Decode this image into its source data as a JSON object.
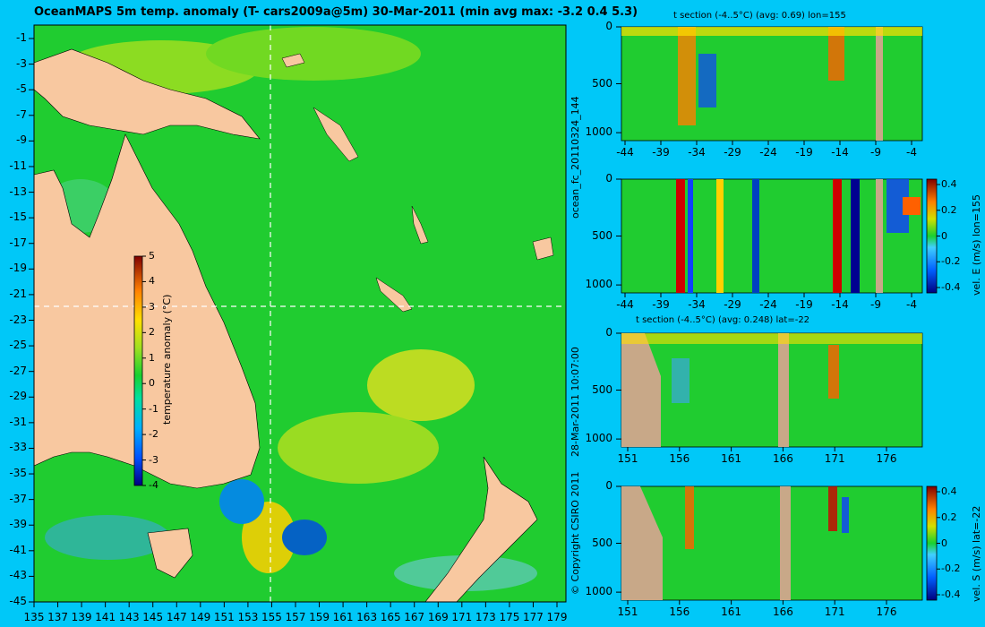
{
  "map": {
    "title": "OceanMAPS 5m temp. anomaly (T- cars2009a@5m) 30-Mar-2011 (min avg max: -3.2 0.4 5.3)",
    "lat_ticks": [
      "-1",
      "-3",
      "-5",
      "-7",
      "-9",
      "-11",
      "-13",
      "-15",
      "-17",
      "-19",
      "-21",
      "-23",
      "-25",
      "-27",
      "-29",
      "-31",
      "-33",
      "-35",
      "-37",
      "-39",
      "-41",
      "-43",
      "-45"
    ],
    "lon_ticks": [
      "135",
      "137",
      "139",
      "141",
      "143",
      "145",
      "147",
      "149",
      "151",
      "153",
      "155",
      "157",
      "159",
      "161",
      "163",
      "165",
      "167",
      "169",
      "171",
      "173",
      "175",
      "177",
      "179"
    ],
    "colorbar": {
      "label": "temperature anomaly (°C)",
      "ticks": [
        "5",
        "4",
        "3",
        "2",
        "1",
        "0",
        "-1",
        "-2",
        "-3",
        "-4"
      ]
    },
    "colors": {
      "land": "#f8c8a0",
      "ocean": "#18d030",
      "frame": "#00c8f8"
    }
  },
  "sections": [
    {
      "title": "t section (-4..5°C) (avg: 0.69) lon=155",
      "x_ticks": [
        "-44",
        "-39",
        "-34",
        "-29",
        "-24",
        "-19",
        "-14",
        "-9",
        "-4"
      ],
      "y_ticks": [
        "0",
        "500",
        "1000"
      ]
    },
    {
      "title": "",
      "x_ticks": [
        "-44",
        "-39",
        "-34",
        "-29",
        "-24",
        "-19",
        "-14",
        "-9",
        "-4"
      ],
      "y_ticks": [
        "0",
        "500",
        "1000"
      ],
      "colorbar_label": "vel. E (m/s) lon=155",
      "colorbar_ticks": [
        "0.4",
        "0.2",
        "0",
        "-0.2",
        "-0.4"
      ]
    },
    {
      "title": "t section (-4..5°C) (avg: 0.248) lat=-22",
      "x_ticks": [
        "151",
        "156",
        "161",
        "166",
        "171",
        "176"
      ],
      "y_ticks": [
        "0",
        "500",
        "1000"
      ]
    },
    {
      "title": "",
      "x_ticks": [
        "151",
        "156",
        "161",
        "166",
        "171",
        "176"
      ],
      "y_ticks": [
        "0",
        "500",
        "1000"
      ],
      "colorbar_label": "vel. S (m/s) lat=-22",
      "colorbar_ticks": [
        "0.4",
        "0.2",
        "0",
        "-0.2",
        "-0.4"
      ]
    }
  ],
  "side_labels": {
    "forecast": "ocean_fc_20110324_144",
    "date": "28-Mar-2011 10:07:00",
    "copyright": "© Copyright CSIRO 2011"
  }
}
